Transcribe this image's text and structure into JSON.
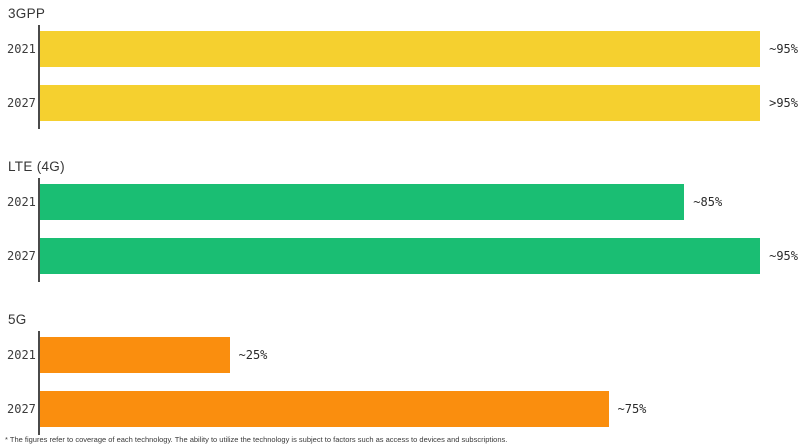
{
  "chart_data": {
    "type": "bar",
    "orientation": "horizontal",
    "xlim": [
      0,
      100
    ],
    "grid": false,
    "legend": false,
    "axis_color": "#4a4a4a",
    "groups": [
      {
        "technology": "3GPP",
        "color": "#F5D02F",
        "bars": [
          {
            "year": "2021",
            "value": 95,
            "label": "~95%"
          },
          {
            "year": "2027",
            "value": 95,
            "label": ">95%"
          }
        ]
      },
      {
        "technology": "LTE (4G)",
        "color": "#1ABE73",
        "bars": [
          {
            "year": "2021",
            "value": 85,
            "label": "~85%"
          },
          {
            "year": "2027",
            "value": 95,
            "label": "~95%"
          }
        ]
      },
      {
        "technology": "5G",
        "color": "#FA8E0E",
        "bars": [
          {
            "year": "2021",
            "value": 25,
            "label": "~25%"
          },
          {
            "year": "2027",
            "value": 75,
            "label": "~75%"
          }
        ]
      }
    ],
    "footnote": "* The figures refer to coverage of each technology. The ability to utilize the technology is subject to factors such as access to devices and subscriptions."
  }
}
